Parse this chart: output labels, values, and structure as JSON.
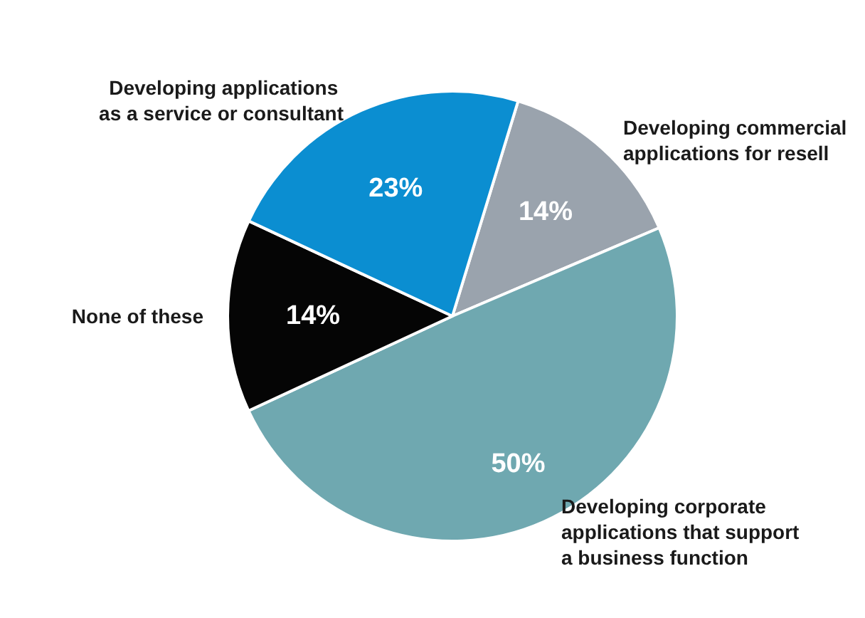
{
  "chart_data": {
    "type": "pie",
    "categories": [
      "Developing commercial applications for resell",
      "Developing corporate applications that support a business function",
      "None of these",
      "Developing applications as a service or consultant"
    ],
    "values": [
      14,
      50,
      14,
      23
    ],
    "colors": [
      "#9aa3ad",
      "#6fa8b0",
      "#050505",
      "#0b8ed1"
    ],
    "value_labels": [
      "14%",
      "50%",
      "14%",
      "23%"
    ]
  }
}
